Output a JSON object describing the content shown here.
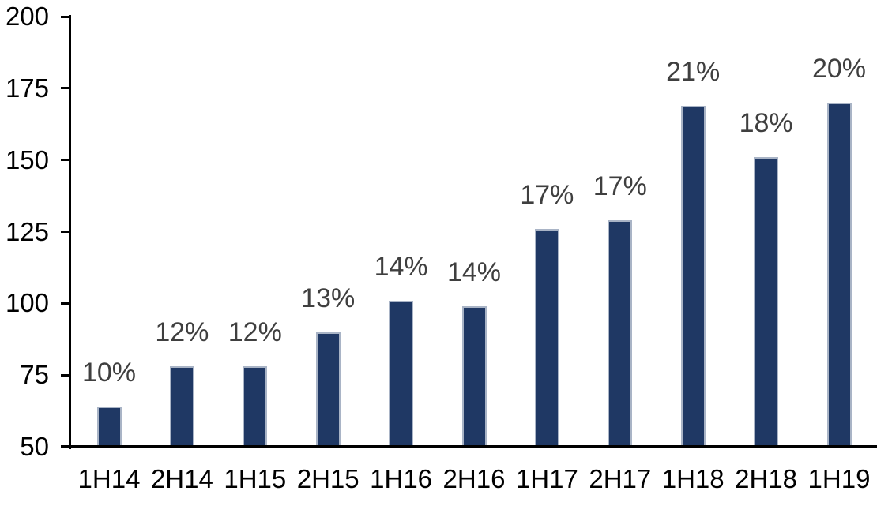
{
  "chart_data": {
    "type": "bar",
    "title": "",
    "xlabel": "",
    "ylabel": "",
    "categories": [
      "1H14",
      "2H14",
      "1H15",
      "2H15",
      "1H16",
      "2H16",
      "1H17",
      "2H17",
      "1H18",
      "2H18",
      "1H19"
    ],
    "values": [
      64,
      78,
      78,
      90,
      101,
      99,
      126,
      129,
      169,
      151,
      170
    ],
    "bar_labels": [
      "10%",
      "12%",
      "12%",
      "13%",
      "14%",
      "14%",
      "17%",
      "17%",
      "21%",
      "18%",
      "20%"
    ],
    "ylim": [
      50,
      200
    ],
    "yticks": [
      50,
      75,
      100,
      125,
      150,
      175,
      200
    ],
    "ytick_labels": [
      "50",
      "75",
      "100",
      "125",
      "150",
      "175",
      "200"
    ],
    "grid": false,
    "legend_position": "none",
    "colors": {
      "bar_fill": "#1f3864",
      "bar_border": "#a9b4c6",
      "data_label": "#3f3f3f",
      "axis_text": "#000000",
      "axis_line": "#000000",
      "background": "#ffffff"
    }
  }
}
